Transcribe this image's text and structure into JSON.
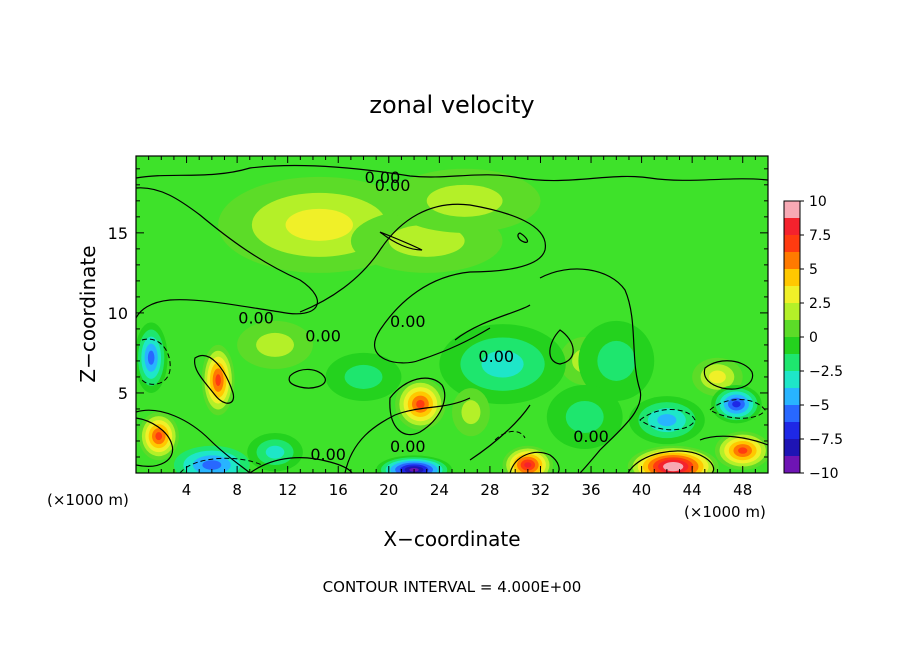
{
  "chart_data": {
    "type": "heatmap",
    "title": "zonal velocity",
    "xlabel": "X−coordinate",
    "ylabel": "Z−coordinate",
    "x_unit_left": "(×1000 m)",
    "x_unit_right": "(×1000 m)",
    "footer": "CONTOUR INTERVAL = 4.000E+00",
    "xlim": [
      0,
      50
    ],
    "ylim": [
      0,
      19.8
    ],
    "x_ticks": [
      4,
      8,
      12,
      16,
      20,
      24,
      28,
      32,
      36,
      40,
      44,
      48
    ],
    "x_tick_labels": [
      "4",
      "8",
      "12",
      "16",
      "20",
      "24",
      "28",
      "32",
      "36",
      "40",
      "44",
      "48"
    ],
    "y_ticks": [
      5,
      10,
      15
    ],
    "y_tick_labels": [
      "5",
      "10",
      "15"
    ],
    "colorbar": {
      "range": [
        -10,
        10
      ],
      "ticks": [
        10,
        7.5,
        5,
        2.5,
        0,
        -2.5,
        -5,
        -7.5,
        -10
      ],
      "tick_labels": [
        "10",
        "7.5",
        "5",
        "2.5",
        "0",
        "−2.5",
        "−5",
        "−7.5",
        "−10"
      ],
      "colors": [
        "#f7a9b4",
        "#f4222d",
        "#ff3b10",
        "#ff7a00",
        "#ffc800",
        "#f0f028",
        "#b4f028",
        "#5cdc28",
        "#24d21e",
        "#1ee66e",
        "#1ee6c8",
        "#28b4ff",
        "#2868ff",
        "#1e28e6",
        "#1e14b4",
        "#6e14b4"
      ]
    },
    "contour_labels": [
      {
        "text": "0.00",
        "x": 19.5,
        "y": 18.5
      },
      {
        "text": "0.00",
        "x": 20.3,
        "y": 18.0
      },
      {
        "text": "0.00",
        "x": 9.5,
        "y": 9.7
      },
      {
        "text": "0.00",
        "x": 14.8,
        "y": 8.6
      },
      {
        "text": "0.00",
        "x": 21.5,
        "y": 9.5
      },
      {
        "text": "0.00",
        "x": 28.5,
        "y": 7.3
      },
      {
        "text": "0.00",
        "x": 15.2,
        "y": 1.2
      },
      {
        "text": "0.00",
        "x": 21.5,
        "y": 1.7
      },
      {
        "text": "0.00",
        "x": 36.0,
        "y": 2.3
      }
    ],
    "field_blobs": [
      {
        "x": 14.5,
        "y": 15.5,
        "rx": 8,
        "ry": 3,
        "v": 2.6
      },
      {
        "x": 23,
        "y": 14.5,
        "rx": 6,
        "ry": 2,
        "v": 2.2
      },
      {
        "x": 26,
        "y": 17,
        "rx": 6,
        "ry": 2,
        "v": 1.8
      },
      {
        "x": 6.5,
        "y": 5.8,
        "rx": 1.3,
        "ry": 2.2,
        "v": 6.5
      },
      {
        "x": 22.5,
        "y": 4.3,
        "rx": 2,
        "ry": 1.6,
        "v": 7.5
      },
      {
        "x": 1.8,
        "y": 2.3,
        "rx": 1.6,
        "ry": 1.5,
        "v": 7.2
      },
      {
        "x": 31,
        "y": 0.5,
        "rx": 2,
        "ry": 1.2,
        "v": 7.8
      },
      {
        "x": 42.5,
        "y": 0.4,
        "rx": 3.6,
        "ry": 1.3,
        "v": 10.5
      },
      {
        "x": 48,
        "y": 1.4,
        "rx": 2.2,
        "ry": 1.2,
        "v": 6.5
      },
      {
        "x": 35.5,
        "y": 7,
        "rx": 2,
        "ry": 1.5,
        "v": 2.5
      },
      {
        "x": 46,
        "y": 6,
        "rx": 2,
        "ry": 1.2,
        "v": 3.5
      },
      {
        "x": 11,
        "y": 8,
        "rx": 3,
        "ry": 1.5,
        "v": 2.2
      },
      {
        "x": 1.2,
        "y": 7.2,
        "rx": 1.3,
        "ry": 2.2,
        "v": -5.5
      },
      {
        "x": 6,
        "y": 0.5,
        "rx": 3,
        "ry": 1.2,
        "v": -5
      },
      {
        "x": 11,
        "y": 1.3,
        "rx": 2.2,
        "ry": 1.2,
        "v": -3.2
      },
      {
        "x": 22,
        "y": 0.2,
        "rx": 3,
        "ry": 0.9,
        "v": -9.5
      },
      {
        "x": 47.5,
        "y": 4.3,
        "rx": 2,
        "ry": 1.2,
        "v": -7
      },
      {
        "x": 42,
        "y": 3.3,
        "rx": 3,
        "ry": 1.5,
        "v": -4
      },
      {
        "x": 29,
        "y": 6.8,
        "rx": 5,
        "ry": 2.5,
        "v": -2.6
      },
      {
        "x": 38,
        "y": 7,
        "rx": 3,
        "ry": 2.5,
        "v": -2
      },
      {
        "x": 35.5,
        "y": 3.5,
        "rx": 3,
        "ry": 2,
        "v": -1.8
      },
      {
        "x": 18,
        "y": 6,
        "rx": 3,
        "ry": 1.5,
        "v": -1.5
      },
      {
        "x": 26.5,
        "y": 3.8,
        "rx": 1.5,
        "ry": 1.5,
        "v": 2
      }
    ]
  }
}
